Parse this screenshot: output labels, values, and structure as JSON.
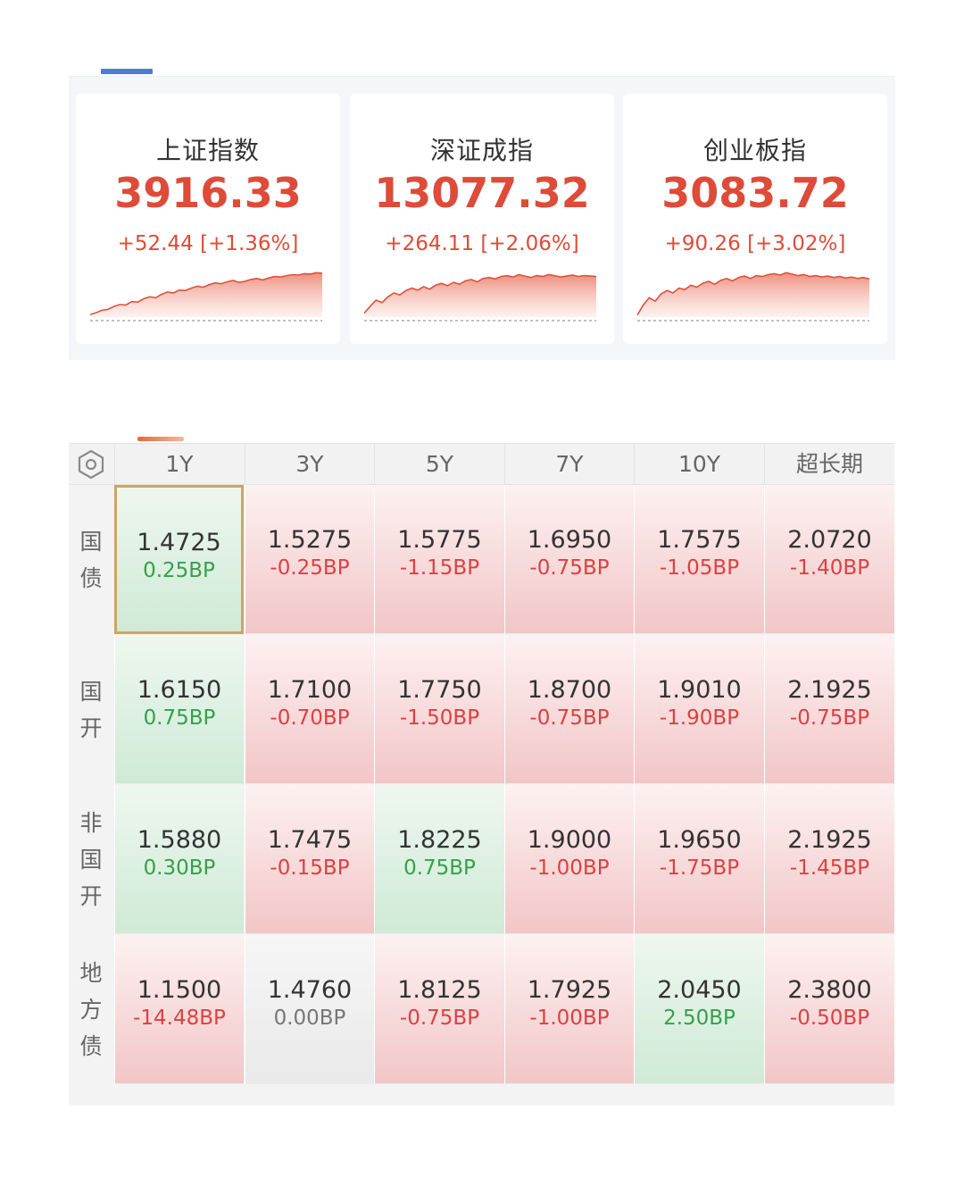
{
  "indices": [
    {
      "name": "上证指数",
      "value": "3916.33",
      "change": "+52.44 [+1.36%]",
      "trend": [
        0.05,
        0.09,
        0.14,
        0.16,
        0.22,
        0.26,
        0.25,
        0.32,
        0.31,
        0.38,
        0.42,
        0.4,
        0.47,
        0.52,
        0.5,
        0.56,
        0.55,
        0.6,
        0.64,
        0.62,
        0.67,
        0.71,
        0.69,
        0.73,
        0.76,
        0.72,
        0.74,
        0.78,
        0.8,
        0.77,
        0.81,
        0.84,
        0.83,
        0.86,
        0.88,
        0.87,
        0.9,
        0.89,
        0.92,
        0.91
      ]
    },
    {
      "name": "深证成指",
      "value": "13077.32",
      "change": "+264.11 [+2.06%]",
      "trend": [
        0.08,
        0.22,
        0.35,
        0.3,
        0.42,
        0.5,
        0.46,
        0.55,
        0.6,
        0.56,
        0.63,
        0.58,
        0.66,
        0.7,
        0.65,
        0.72,
        0.68,
        0.75,
        0.78,
        0.73,
        0.8,
        0.82,
        0.79,
        0.84,
        0.86,
        0.83,
        0.88,
        0.85,
        0.82,
        0.86,
        0.84,
        0.88,
        0.86,
        0.83,
        0.85,
        0.87,
        0.84,
        0.86,
        0.85,
        0.84
      ]
    },
    {
      "name": "创业板指",
      "value": "3083.72",
      "change": "+90.26 [+3.02%]",
      "trend": [
        0.04,
        0.25,
        0.4,
        0.33,
        0.48,
        0.55,
        0.5,
        0.6,
        0.57,
        0.66,
        0.62,
        0.7,
        0.74,
        0.68,
        0.76,
        0.8,
        0.75,
        0.82,
        0.85,
        0.8,
        0.86,
        0.84,
        0.88,
        0.9,
        0.87,
        0.92,
        0.89,
        0.86,
        0.88,
        0.84,
        0.86,
        0.83,
        0.85,
        0.82,
        0.84,
        0.81,
        0.83,
        0.8,
        0.82,
        0.79
      ]
    }
  ],
  "colors": {
    "up_text": "#dd4b39",
    "down_bp": "#dd4040",
    "up_bp": "#33a14a",
    "line": "#e0503c"
  },
  "grid": {
    "settings_icon": "hexagon-settings-icon",
    "columns": [
      "1Y",
      "3Y",
      "5Y",
      "7Y",
      "10Y",
      "超长期"
    ],
    "rows": [
      {
        "label": [
          "国",
          "债"
        ],
        "cells": [
          {
            "rate": "1.4725",
            "bp": "0.25BP",
            "trend": "up"
          },
          {
            "rate": "1.5275",
            "bp": "-0.25BP",
            "trend": "down"
          },
          {
            "rate": "1.5775",
            "bp": "-1.15BP",
            "trend": "down"
          },
          {
            "rate": "1.6950",
            "bp": "-0.75BP",
            "trend": "down"
          },
          {
            "rate": "1.7575",
            "bp": "-1.05BP",
            "trend": "down"
          },
          {
            "rate": "2.0720",
            "bp": "-1.40BP",
            "trend": "down"
          }
        ]
      },
      {
        "label": [
          "国",
          "开"
        ],
        "cells": [
          {
            "rate": "1.6150",
            "bp": "0.75BP",
            "trend": "up"
          },
          {
            "rate": "1.7100",
            "bp": "-0.70BP",
            "trend": "down"
          },
          {
            "rate": "1.7750",
            "bp": "-1.50BP",
            "trend": "down"
          },
          {
            "rate": "1.8700",
            "bp": "-0.75BP",
            "trend": "down"
          },
          {
            "rate": "1.9010",
            "bp": "-1.90BP",
            "trend": "down"
          },
          {
            "rate": "2.1925",
            "bp": "-0.75BP",
            "trend": "down"
          }
        ]
      },
      {
        "label": [
          "非",
          "国",
          "开"
        ],
        "cells": [
          {
            "rate": "1.5880",
            "bp": "0.30BP",
            "trend": "up"
          },
          {
            "rate": "1.7475",
            "bp": "-0.15BP",
            "trend": "down"
          },
          {
            "rate": "1.8225",
            "bp": "0.75BP",
            "trend": "up"
          },
          {
            "rate": "1.9000",
            "bp": "-1.00BP",
            "trend": "down"
          },
          {
            "rate": "1.9650",
            "bp": "-1.75BP",
            "trend": "down"
          },
          {
            "rate": "2.1925",
            "bp": "-1.45BP",
            "trend": "down"
          }
        ]
      },
      {
        "label": [
          "地",
          "方",
          "债"
        ],
        "cells": [
          {
            "rate": "1.1500",
            "bp": "-14.48BP",
            "trend": "down"
          },
          {
            "rate": "1.4760",
            "bp": "0.00BP",
            "trend": "flat"
          },
          {
            "rate": "1.8125",
            "bp": "-0.75BP",
            "trend": "down"
          },
          {
            "rate": "1.7925",
            "bp": "-1.00BP",
            "trend": "down"
          },
          {
            "rate": "2.0450",
            "bp": "2.50BP",
            "trend": "up"
          },
          {
            "rate": "2.3800",
            "bp": "-0.50BP",
            "trend": "down"
          }
        ]
      }
    ],
    "selected": {
      "row": 0,
      "col": 0
    }
  }
}
